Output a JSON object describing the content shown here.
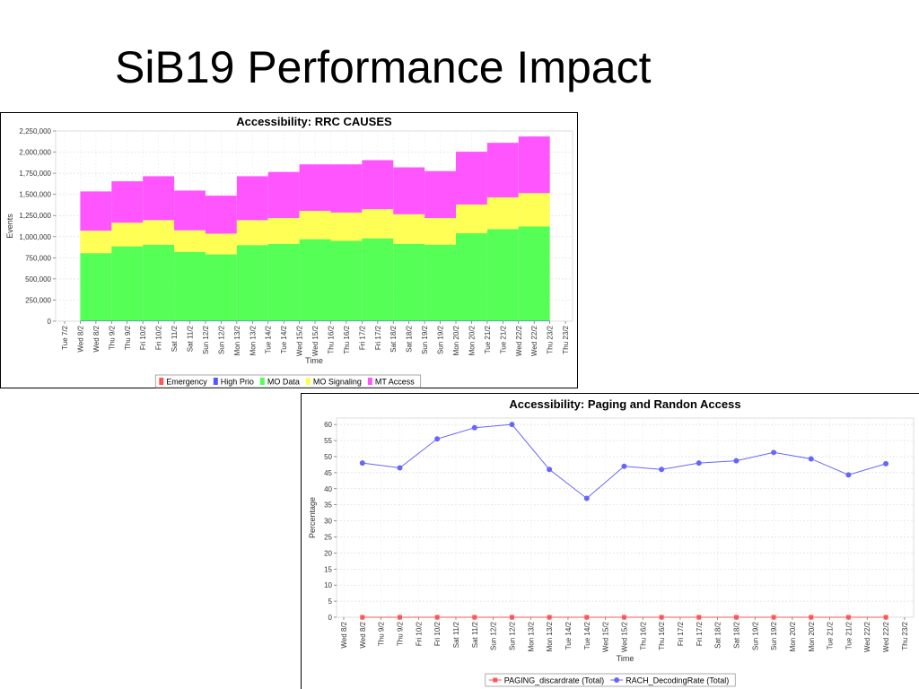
{
  "title": "SiB19 Performance Impact",
  "chart_data": [
    {
      "type": "bar",
      "stacked": true,
      "title": "Accessibility: RRC CAUSES",
      "xlabel": "Time",
      "ylabel": "Events",
      "xticks": [
        "Tue 7/2",
        "Wed 8/2",
        "Wed 8/2",
        "Thu 9/2",
        "Thu 9/2",
        "Fri 10/2",
        "Fri 10/2",
        "Sat 11/2",
        "Sat 11/2",
        "Sun 12/2",
        "Sun 12/2",
        "Mon 13/2",
        "Mon 13/2",
        "Tue 14/2",
        "Tue 14/2",
        "Wed 15/2",
        "Wed 15/2",
        "Thu 16/2",
        "Thu 16/2",
        "Fri 17/2",
        "Fri 17/2",
        "Sat 18/2",
        "Sat 18/2",
        "Sun 19/2",
        "Sun 19/2",
        "Mon 20/2",
        "Mon 20/2",
        "Tue 21/2",
        "Tue 21/2",
        "Wed 22/2",
        "Wed 22/2",
        "Thu 23/2",
        "Thu 23/2"
      ],
      "series": [
        {
          "name": "Emergency",
          "color": "#ff5555",
          "values": [
            0,
            0,
            0,
            0,
            0,
            0,
            0,
            0,
            0,
            0,
            0,
            0,
            0,
            0,
            0
          ]
        },
        {
          "name": "High Prio",
          "color": "#5555ff",
          "values": [
            5000,
            5000,
            5000,
            5000,
            5000,
            5000,
            5000,
            5000,
            5000,
            5000,
            5000,
            5000,
            5000,
            5000,
            5000
          ]
        },
        {
          "name": "MO Data",
          "color": "#55ff55",
          "values": [
            800000,
            880000,
            900000,
            815000,
            785000,
            895000,
            910000,
            965000,
            945000,
            975000,
            910000,
            900000,
            1035000,
            1085000,
            1115000
          ]
        },
        {
          "name": "MO Signaling",
          "color": "#ffff55",
          "values": [
            265000,
            280000,
            290000,
            255000,
            245000,
            295000,
            305000,
            335000,
            335000,
            345000,
            350000,
            315000,
            340000,
            375000,
            395000
          ]
        },
        {
          "name": "MT Access",
          "color": "#ff55ff",
          "values": [
            465000,
            490000,
            520000,
            470000,
            450000,
            520000,
            545000,
            550000,
            570000,
            580000,
            555000,
            555000,
            625000,
            645000,
            670000
          ]
        }
      ],
      "ylim": [
        0,
        2250000
      ],
      "yticks": [
        0,
        {
          "value": 250000,
          "label": "250,000"
        },
        {
          "value": 500000,
          "label": "500,000"
        },
        {
          "value": 750000,
          "label": "750,000"
        },
        {
          "value": 1000000,
          "label": "1,000,000"
        },
        {
          "value": 1250000,
          "label": "1,250,000"
        },
        {
          "value": 1500000,
          "label": "1,500,000"
        },
        {
          "value": 1750000,
          "label": "1,750,000"
        },
        {
          "value": 2000000,
          "label": "2,000,000"
        },
        {
          "value": 2250000,
          "label": "2,250,000"
        }
      ],
      "grid": true,
      "legend": "bottom"
    },
    {
      "type": "line",
      "title": "Accessibility: Paging and Randon Access",
      "xlabel": "Time",
      "ylabel": "Percentage",
      "xticks": [
        "Wed 8/2",
        "Wed 8/2",
        "Thu 9/2",
        "Thu 9/2",
        "Fri 10/2",
        "Fri 10/2",
        "Sat 11/2",
        "Sat 11/2",
        "Sun 12/2",
        "Sun 12/2",
        "Mon 13/2",
        "Mon 13/2",
        "Tue 14/2",
        "Tue 14/2",
        "Wed 15/2",
        "Wed 15/2",
        "Thu 16/2",
        "Thu 16/2",
        "Fri 17/2",
        "Fri 17/2",
        "Sat 18/2",
        "Sat 18/2",
        "Sun 19/2",
        "Sun 19/2",
        "Mon 20/2",
        "Mon 20/2",
        "Tue 21/2",
        "Tue 21/2",
        "Wed 22/2",
        "Wed 22/2",
        "Thu 23/2"
      ],
      "series": [
        {
          "name": "PAGING_discardrate (Total)",
          "color": "#ff5555",
          "marker": "square",
          "values": [
            0,
            0,
            0,
            0,
            0,
            0,
            0,
            0,
            0,
            0,
            0,
            0,
            0,
            0,
            0
          ]
        },
        {
          "name": "RACH_DecodingRate (Total)",
          "color": "#6666ff",
          "marker": "circle",
          "values": [
            48,
            46.5,
            55.5,
            59,
            60,
            46,
            37,
            47,
            46,
            48,
            48.7,
            51.3,
            49.3,
            44.3,
            47.8
          ]
        }
      ],
      "ylim": [
        0,
        62
      ],
      "yticks": [
        0,
        5,
        10,
        15,
        20,
        25,
        30,
        35,
        40,
        45,
        50,
        55,
        60
      ],
      "grid": true,
      "legend": "bottom"
    }
  ]
}
